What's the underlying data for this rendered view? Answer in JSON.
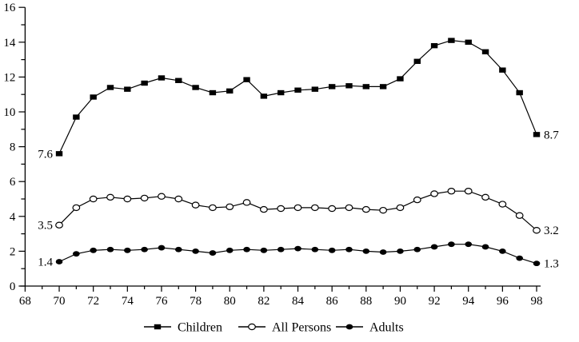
{
  "chart_data": {
    "type": "line",
    "title": "",
    "xlabel": "",
    "ylabel": "",
    "background": "#ffffff",
    "axis_color": "#000000",
    "line_color": "#000000",
    "grid": false,
    "x_axis": {
      "min": 68,
      "max": 98,
      "major_step": 2,
      "minor_step": 1,
      "tick_labels": [
        "68",
        "70",
        "72",
        "74",
        "76",
        "78",
        "80",
        "82",
        "84",
        "86",
        "88",
        "90",
        "92",
        "94",
        "96",
        "98"
      ]
    },
    "y_axis": {
      "min": 0,
      "max": 16,
      "major_step": 2,
      "minor_step": 1,
      "tick_labels": [
        "0",
        "2",
        "4",
        "6",
        "8",
        "10",
        "12",
        "14",
        "16"
      ]
    },
    "x": [
      70,
      71,
      72,
      73,
      74,
      75,
      76,
      77,
      78,
      79,
      80,
      81,
      82,
      83,
      84,
      85,
      86,
      87,
      88,
      89,
      90,
      91,
      92,
      93,
      94,
      95,
      96,
      97,
      98
    ],
    "series": [
      {
        "name": "Children",
        "marker": "filled-square",
        "color": "#000000",
        "start_label": "7.6",
        "end_label": "8.7",
        "values": [
          7.6,
          9.7,
          10.85,
          11.4,
          11.3,
          11.65,
          11.95,
          11.8,
          11.4,
          11.1,
          11.2,
          11.85,
          10.9,
          11.1,
          11.25,
          11.3,
          11.45,
          11.5,
          11.45,
          11.45,
          11.9,
          12.9,
          13.8,
          14.1,
          14.0,
          13.45,
          12.4,
          11.1,
          8.7
        ]
      },
      {
        "name": "All Persons",
        "marker": "open-circle",
        "color": "#000000",
        "start_label": "3.5",
        "end_label": "3.2",
        "values": [
          3.5,
          4.5,
          5.0,
          5.1,
          5.0,
          5.05,
          5.15,
          5.0,
          4.65,
          4.5,
          4.55,
          4.8,
          4.4,
          4.45,
          4.5,
          4.5,
          4.45,
          4.5,
          4.4,
          4.35,
          4.5,
          4.95,
          5.3,
          5.45,
          5.45,
          5.1,
          4.7,
          4.05,
          3.2
        ]
      },
      {
        "name": "Adults",
        "marker": "filled-circle",
        "color": "#000000",
        "start_label": "1.4",
        "end_label": "1.3",
        "values": [
          1.4,
          1.85,
          2.05,
          2.1,
          2.05,
          2.1,
          2.2,
          2.1,
          2.0,
          1.9,
          2.05,
          2.1,
          2.05,
          2.1,
          2.15,
          2.1,
          2.05,
          2.1,
          2.0,
          1.95,
          2.0,
          2.1,
          2.25,
          2.4,
          2.4,
          2.25,
          2.0,
          1.6,
          1.3
        ]
      }
    ],
    "legend": {
      "position": "bottom-center",
      "entries": [
        "Children",
        "All Persons",
        "Adults"
      ]
    }
  }
}
